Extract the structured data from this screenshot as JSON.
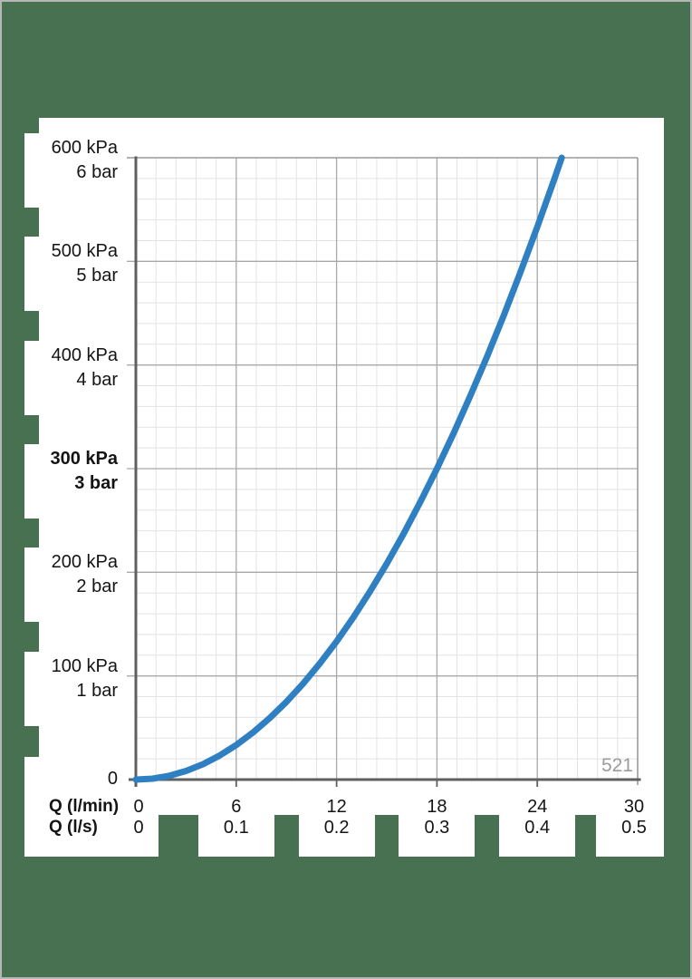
{
  "colors": {
    "background_green": "#487151",
    "page_border": "#b6b6b6",
    "panel_white": "#ffffff",
    "axis_dark": "#5f5f5f",
    "grid_major": "#a9a9a9",
    "grid_minor": "#e3e3e3",
    "frame_gray": "#9a9a9a",
    "curve_blue": "#2f80c2",
    "text_black": "#141414",
    "watermark_gray": "#9b9b9b"
  },
  "chart_data": {
    "type": "line",
    "annotation": "521",
    "grid": true,
    "legend": false,
    "x_axis": {
      "label_lmin": "Q (l/min)",
      "label_ls": "Q (l/s)",
      "tick_values_lmin": [
        0,
        6,
        12,
        18,
        24,
        30
      ],
      "ticks_lmin": [
        "0",
        "6",
        "12",
        "18",
        "24",
        "30"
      ],
      "ticks_ls": [
        "0",
        "0.1",
        "0.2",
        "0.3",
        "0.4",
        "0.5"
      ],
      "range_lmin": [
        0,
        30
      ],
      "major_step_lmin": 6,
      "minor_step_lmin": 1.2
    },
    "y_axis": {
      "labels": [
        {
          "kpa": "600 kPa",
          "bar": "6 bar",
          "value": 600,
          "bold": false
        },
        {
          "kpa": "500 kPa",
          "bar": "5 bar",
          "value": 500,
          "bold": false
        },
        {
          "kpa": "400 kPa",
          "bar": "4 bar",
          "value": 400,
          "bold": false
        },
        {
          "kpa": "300 kPa",
          "bar": "3 bar",
          "value": 300,
          "bold": true
        },
        {
          "kpa": "200 kPa",
          "bar": "2 bar",
          "value": 200,
          "bold": false
        },
        {
          "kpa": "100 kPa",
          "bar": "1 bar",
          "value": 100,
          "bold": false
        }
      ],
      "zero_label": "0",
      "range_kpa": [
        0,
        600
      ],
      "major_step_kpa": 100,
      "minor_step_kpa": 20
    },
    "series": [
      {
        "name": "pressure-drop-curve",
        "color": "#2f80c2",
        "points_lmin_kpa": [
          [
            0,
            0
          ],
          [
            1,
            0.9
          ],
          [
            2,
            3.7
          ],
          [
            3,
            8.3
          ],
          [
            4,
            14.8
          ],
          [
            5,
            23.1
          ],
          [
            6,
            33.3
          ],
          [
            7,
            45.4
          ],
          [
            8,
            59.3
          ],
          [
            9,
            75.0
          ],
          [
            10,
            92.6
          ],
          [
            11,
            112.0
          ],
          [
            12,
            133.3
          ],
          [
            13,
            156.5
          ],
          [
            14,
            181.5
          ],
          [
            15,
            208.3
          ],
          [
            16,
            237.0
          ],
          [
            17,
            267.6
          ],
          [
            18,
            300.0
          ],
          [
            19,
            334.3
          ],
          [
            20,
            370.4
          ],
          [
            21,
            408.3
          ],
          [
            22,
            448.1
          ],
          [
            23,
            489.8
          ],
          [
            24,
            533.3
          ],
          [
            25,
            578.7
          ],
          [
            25.46,
            600.0
          ]
        ]
      }
    ]
  }
}
